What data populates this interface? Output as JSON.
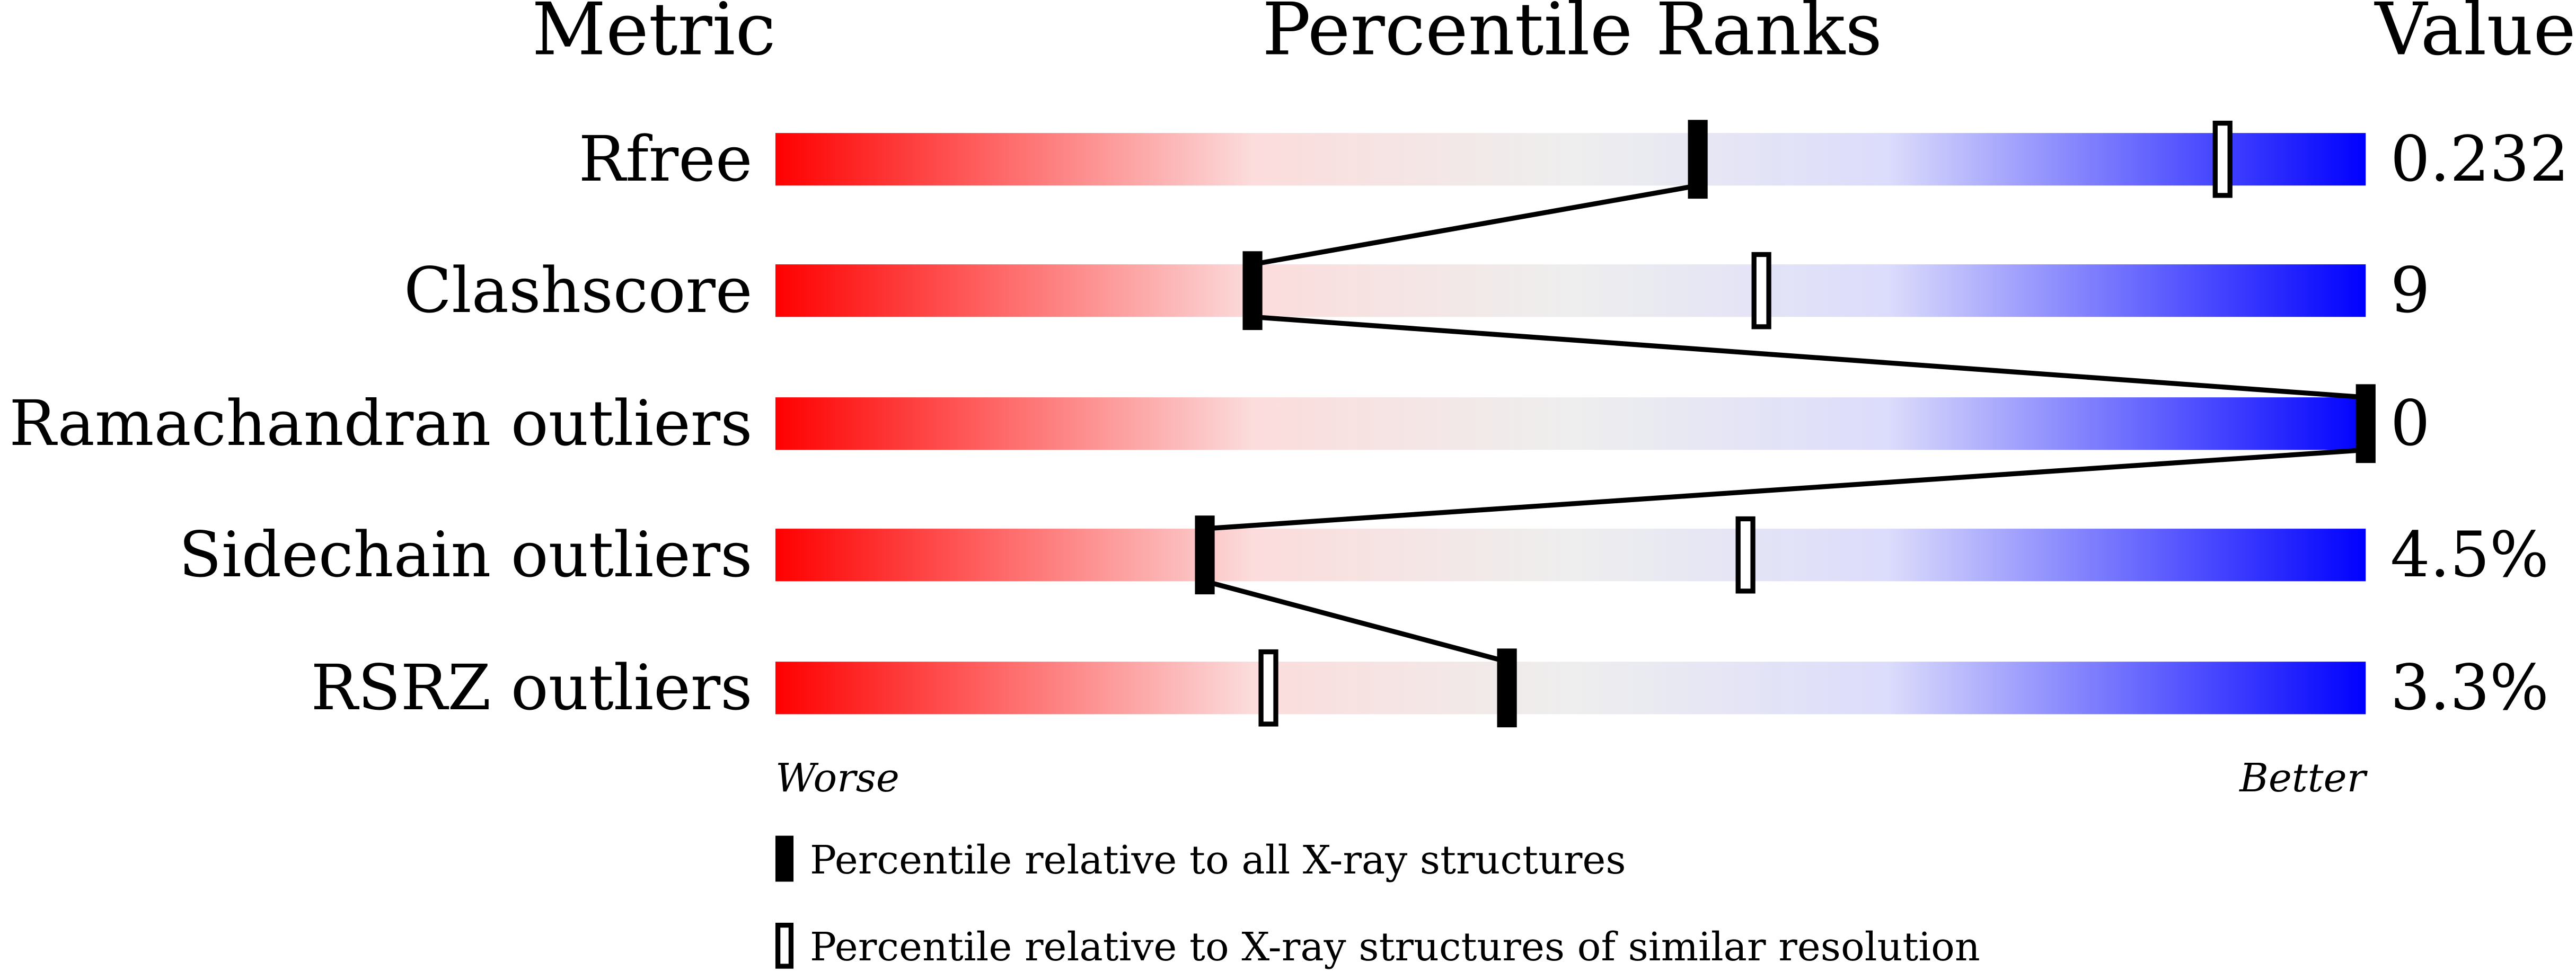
{
  "chart_data": {
    "type": "percentile-bars",
    "headers": {
      "metric": "Metric",
      "ranks": "Percentile Ranks",
      "value": "Value"
    },
    "axis_ends": {
      "left": "Worse",
      "right": "Better"
    },
    "xlim": [
      0,
      100
    ],
    "colors": {
      "worse": "#ff0000",
      "middle": "#eeeeee",
      "better": "#0000ff"
    },
    "metrics": [
      {
        "name": "Rfree",
        "value": "0.232",
        "percentile_all": 58,
        "percentile_similar": 91
      },
      {
        "name": "Clashscore",
        "value": "9",
        "percentile_all": 30,
        "percentile_similar": 62
      },
      {
        "name": "Ramachandran outliers",
        "value": "0",
        "percentile_all": 100,
        "percentile_similar": null
      },
      {
        "name": "Sidechain outliers",
        "value": "4.5%",
        "percentile_all": 27,
        "percentile_similar": 61
      },
      {
        "name": "RSRZ outliers",
        "value": "3.3%",
        "percentile_all": 46,
        "percentile_similar": 31
      }
    ],
    "legend": [
      {
        "marker": "filled",
        "label": "Percentile relative to all X-ray structures"
      },
      {
        "marker": "open",
        "label": "Percentile relative to X-ray structures of similar resolution"
      }
    ]
  }
}
